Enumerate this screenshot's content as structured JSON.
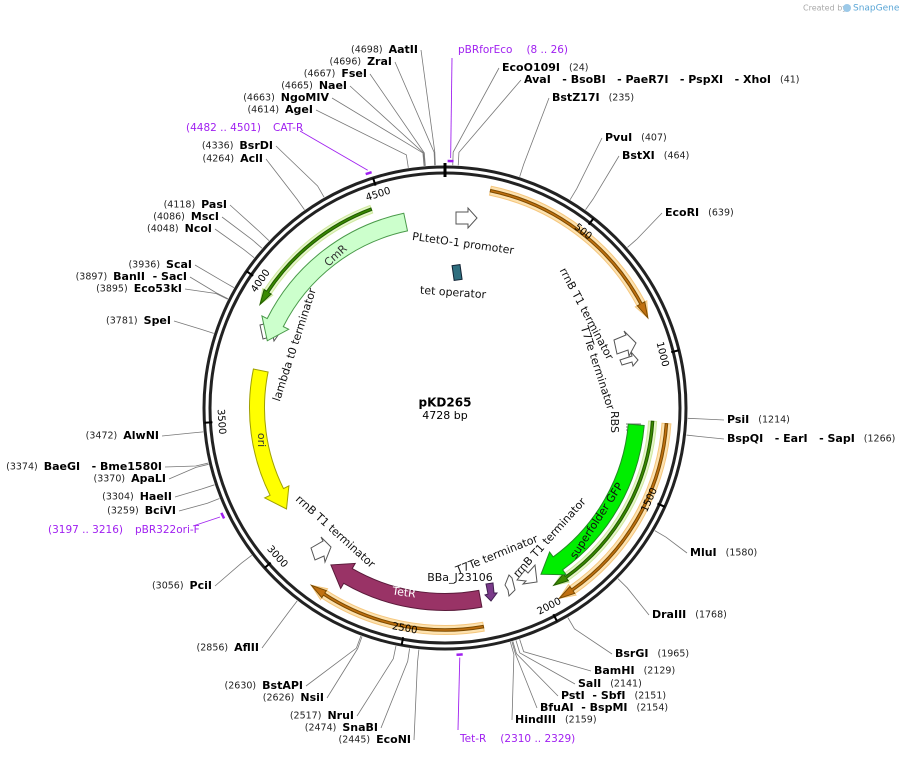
{
  "credit_prefix": "Created by",
  "credit_brand": "SnapGene",
  "plasmid": {
    "name": "pKD265",
    "size_label": "4728 bp",
    "length": 4728
  },
  "ticks": [
    500,
    1000,
    1500,
    2000,
    2500,
    3000,
    3500,
    4000,
    4500
  ],
  "enzymes": [
    {
      "name": "AatII",
      "position": 4698,
      "position_label": "(4698)"
    },
    {
      "name": "ZraI",
      "position": 4696,
      "position_label": "(4696)"
    },
    {
      "name": "FseI",
      "position": 4667,
      "position_label": "(4667)"
    },
    {
      "name": "NaeI",
      "position": 4665,
      "position_label": "(4665)"
    },
    {
      "name": "NgoMIV",
      "position": 4663,
      "position_label": "(4663)"
    },
    {
      "name": "AgeI",
      "position": 4614,
      "position_label": "(4614)"
    },
    {
      "name": "BsrDI",
      "position": 4336,
      "position_label": "(4336)"
    },
    {
      "name": "AclI",
      "position": 4264,
      "position_label": "(4264)"
    },
    {
      "name": "PasI",
      "position": 4118,
      "position_label": "(4118)"
    },
    {
      "name": "MscI",
      "position": 4086,
      "position_label": "(4086)"
    },
    {
      "name": "NcoI",
      "position": 4048,
      "position_label": "(4048)"
    },
    {
      "name": "ScaI",
      "position": 3936,
      "position_label": "(3936)"
    },
    {
      "name": "BanII  - SacI",
      "position": 3897,
      "position_label": "(3897)"
    },
    {
      "name": "Eco53kI",
      "position": 3895,
      "position_label": "(3895)"
    },
    {
      "name": "SpeI",
      "position": 3781,
      "position_label": "(3781)"
    },
    {
      "name": "AlwNI",
      "position": 3472,
      "position_label": "(3472)"
    },
    {
      "name": "BaeGI   - Bme1580I",
      "position": 3374,
      "position_label": "(3374)"
    },
    {
      "name": "ApaLI",
      "position": 3370,
      "position_label": "(3370)"
    },
    {
      "name": "HaeII",
      "position": 3304,
      "position_label": "(3304)"
    },
    {
      "name": "BciVI",
      "position": 3259,
      "position_label": "(3259)"
    },
    {
      "name": "PciI",
      "position": 3056,
      "position_label": "(3056)"
    },
    {
      "name": "AflII",
      "position": 2856,
      "position_label": "(2856)"
    },
    {
      "name": "BstAPI",
      "position": 2630,
      "position_label": "(2630)"
    },
    {
      "name": "NsiI",
      "position": 2626,
      "position_label": "(2626)"
    },
    {
      "name": "NruI",
      "position": 2517,
      "position_label": "(2517)"
    },
    {
      "name": "SnaBI",
      "position": 2474,
      "position_label": "(2474)"
    },
    {
      "name": "EcoNI",
      "position": 2445,
      "position_label": "(2445)"
    },
    {
      "name": "EcoO109I",
      "position": 24,
      "position_label": "(24)"
    },
    {
      "name": "AvaI   - BsoBI   - PaeR7I   - PspXI   - XhoI",
      "position": 41,
      "position_label": "(41)"
    },
    {
      "name": "BstZ17I",
      "position": 235,
      "position_label": "(235)"
    },
    {
      "name": "PvuI",
      "position": 407,
      "position_label": "(407)"
    },
    {
      "name": "BstXI",
      "position": 464,
      "position_label": "(464)"
    },
    {
      "name": "EcoRI",
      "position": 639,
      "position_label": "(639)"
    },
    {
      "name": "PsiI",
      "position": 1214,
      "position_label": "(1214)"
    },
    {
      "name": "BspQI   - EarI   - SapI",
      "position": 1266,
      "position_label": "(1266)"
    },
    {
      "name": "MluI",
      "position": 1580,
      "position_label": "(1580)"
    },
    {
      "name": "DraIII",
      "position": 1768,
      "position_label": "(1768)"
    },
    {
      "name": "BsrGI",
      "position": 1965,
      "position_label": "(1965)"
    },
    {
      "name": "BamHI",
      "position": 2129,
      "position_label": "(2129)"
    },
    {
      "name": "SalI",
      "position": 2141,
      "position_label": "(2141)"
    },
    {
      "name": "PstI  - SbfI",
      "position": 2151,
      "position_label": "(2151)"
    },
    {
      "name": "BfuAI  - BspMI",
      "position": 2154,
      "position_label": "(2154)"
    },
    {
      "name": "HindIII",
      "position": 2159,
      "position_label": "(2159)"
    }
  ],
  "primers": [
    {
      "name": "pBRforEco",
      "start": 8,
      "end": 26,
      "range_label": "(8 .. 26)"
    },
    {
      "name": "CAT-R",
      "start": 4482,
      "end": 4501,
      "range_label": "(4482 .. 4501)"
    },
    {
      "name": "pBR322ori-F",
      "start": 3197,
      "end": 3216,
      "range_label": "(3197 .. 3216)"
    },
    {
      "name": "Tet-R",
      "start": 2310,
      "end": 2329,
      "range_label": "(2310 .. 2329)"
    }
  ],
  "features": [
    {
      "name": "PLtetO-1 promoter"
    },
    {
      "name": "tet operator"
    },
    {
      "name": "rrnB T1 terminator"
    },
    {
      "name": "T7Te terminator"
    },
    {
      "name": "RBS"
    },
    {
      "name": "superfolder GFP",
      "color": "#00ee00"
    },
    {
      "name": "rrnB T1 terminator"
    },
    {
      "name": "T7Te terminator"
    },
    {
      "name": "BBa_J23106"
    },
    {
      "name": "TetR",
      "color": "#993366"
    },
    {
      "name": "rrnB T1 terminator"
    },
    {
      "name": "ori",
      "color": "#ffff00"
    },
    {
      "name": "lambda t0 terminator"
    },
    {
      "name": "CmR",
      "color": "#ccffcc"
    }
  ]
}
